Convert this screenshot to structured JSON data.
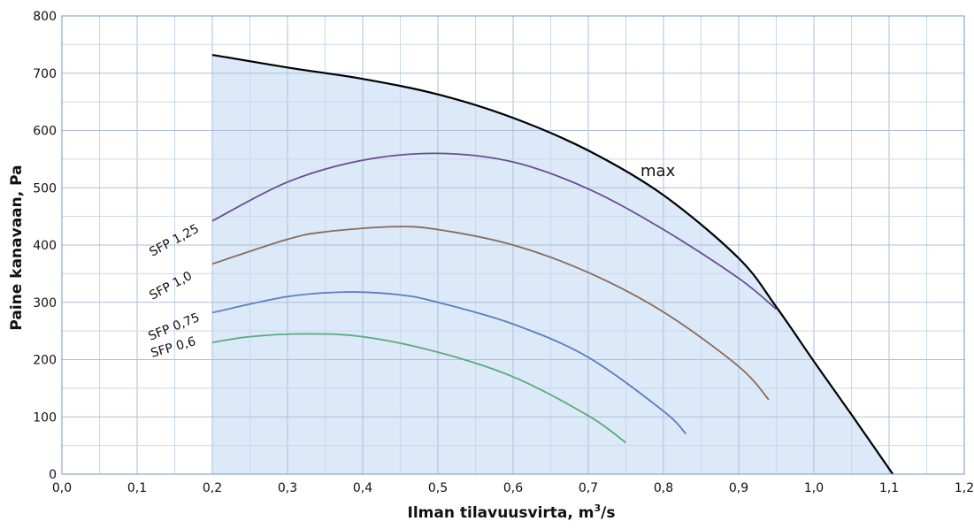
{
  "chart_data": {
    "type": "line",
    "title": "",
    "xlabel": "Ilman tilavuusvirta, m",
    "xlabel_sup": "3",
    "xlabel_tail": "/s",
    "ylabel": "Paine kanavaan, Pa",
    "xlim": [
      0,
      1.2
    ],
    "ylim": [
      0,
      800
    ],
    "grid": true,
    "x_ticks": [
      {
        "v": 0.0,
        "label": "0,0"
      },
      {
        "v": 0.1,
        "label": "0,1"
      },
      {
        "v": 0.2,
        "label": "0,2"
      },
      {
        "v": 0.3,
        "label": "0,3"
      },
      {
        "v": 0.4,
        "label": "0,4"
      },
      {
        "v": 0.5,
        "label": "0,5"
      },
      {
        "v": 0.6,
        "label": "0,6"
      },
      {
        "v": 0.7,
        "label": "0,7"
      },
      {
        "v": 0.8,
        "label": "0,8"
      },
      {
        "v": 0.9,
        "label": "0,9"
      },
      {
        "v": 1.0,
        "label": "1,0"
      },
      {
        "v": 1.1,
        "label": "1,1"
      },
      {
        "v": 1.2,
        "label": "1,2"
      }
    ],
    "y_ticks": [
      {
        "v": 0,
        "label": "0"
      },
      {
        "v": 100,
        "label": "100"
      },
      {
        "v": 200,
        "label": "200"
      },
      {
        "v": 300,
        "label": "300"
      },
      {
        "v": 400,
        "label": "400"
      },
      {
        "v": 500,
        "label": "500"
      },
      {
        "v": 600,
        "label": "600"
      },
      {
        "v": 700,
        "label": "700"
      },
      {
        "v": 800,
        "label": "800"
      }
    ],
    "series": [
      {
        "name": "max",
        "color": "#000000",
        "fill": "#dce9f8",
        "x": [
          0.2,
          0.3,
          0.4,
          0.5,
          0.6,
          0.7,
          0.8,
          0.9,
          0.95,
          1.0,
          1.05,
          1.105
        ],
        "y": [
          732,
          710,
          690,
          663,
          622,
          565,
          487,
          377,
          292,
          197,
          104,
          0
        ]
      },
      {
        "name": "SFP 1,25",
        "color": "#6a4c93",
        "x": [
          0.2,
          0.3,
          0.4,
          0.5,
          0.6,
          0.7,
          0.8,
          0.9,
          0.95
        ],
        "y": [
          442,
          510,
          548,
          560,
          545,
          498,
          427,
          342,
          288
        ]
      },
      {
        "name": "SFP 1,0",
        "color": "#8b6a5a",
        "x": [
          0.2,
          0.3,
          0.35,
          0.44,
          0.5,
          0.6,
          0.7,
          0.8,
          0.9,
          0.94
        ],
        "y": [
          367,
          410,
          423,
          432,
          427,
          400,
          352,
          283,
          188,
          130
        ]
      },
      {
        "name": "SFP 0,75",
        "color": "#5b7fc0",
        "x": [
          0.2,
          0.3,
          0.38,
          0.45,
          0.5,
          0.6,
          0.7,
          0.8,
          0.83
        ],
        "y": [
          282,
          310,
          318,
          313,
          300,
          262,
          204,
          110,
          70
        ]
      },
      {
        "name": "SFP 0,6",
        "color": "#5aab7a",
        "x": [
          0.2,
          0.25,
          0.32,
          0.4,
          0.5,
          0.6,
          0.7,
          0.75
        ],
        "y": [
          230,
          240,
          245,
          240,
          213,
          170,
          102,
          55
        ]
      }
    ],
    "labels": [
      {
        "text": "SFP 1,25",
        "series": 1
      },
      {
        "text": "SFP 1,0",
        "series": 2
      },
      {
        "text": "SFP 0,75",
        "series": 3
      },
      {
        "text": "SFP 0,6",
        "series": 4
      },
      {
        "text": "max",
        "series": 0
      }
    ]
  }
}
